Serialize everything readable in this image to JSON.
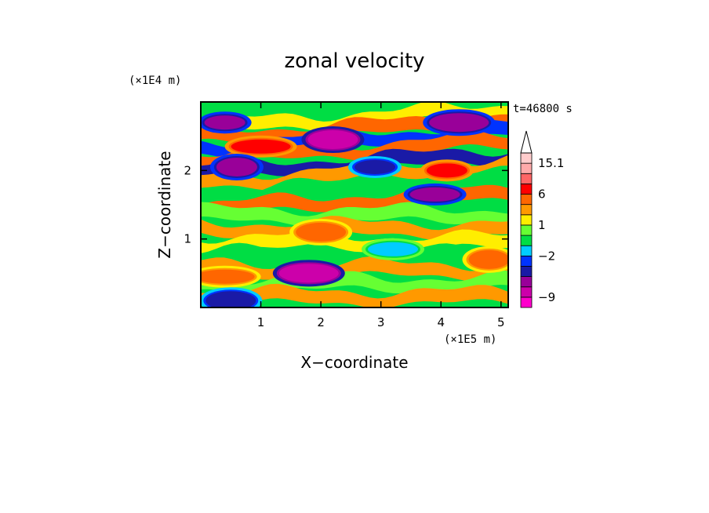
{
  "chart_data": {
    "type": "heatmap",
    "title": "zonal velocity",
    "xlabel": "X−coordinate",
    "ylabel": "Z−coordinate",
    "x_unit": "(×1E5 m)",
    "y_unit": "(×1E4 m)",
    "time_label": "t=46800 s",
    "xlim": [
      0,
      5.12
    ],
    "ylim": [
      0,
      3.0
    ],
    "x_ticks": [
      "1",
      "2",
      "3",
      "4",
      "5"
    ],
    "y_ticks": [
      "1",
      "2"
    ],
    "colorbar": {
      "labels": [
        "15.1",
        "6",
        "1",
        "−2",
        "−9"
      ],
      "colors": [
        "#ff00cc",
        "#cc00aa",
        "#990099",
        "#1a1aa6",
        "#0033ff",
        "#00ccff",
        "#00dd44",
        "#66ff33",
        "#ffee00",
        "#ff9900",
        "#ff6600",
        "#ff0000",
        "#ff6666",
        "#ffaaaa",
        "#ffcccc"
      ],
      "extend": "max"
    },
    "bands": [
      {
        "z": 2.75,
        "u": 1
      },
      {
        "z": 2.6,
        "u": 4
      },
      {
        "z": 2.45,
        "u": -3
      },
      {
        "z": 2.3,
        "u": 5
      },
      {
        "z": 2.1,
        "u": -5
      },
      {
        "z": 1.95,
        "u": 3
      },
      {
        "z": 1.75,
        "u": -1
      },
      {
        "z": 1.55,
        "u": 4
      },
      {
        "z": 1.35,
        "u": 0
      },
      {
        "z": 1.15,
        "u": 3
      },
      {
        "z": 0.95,
        "u": 1
      },
      {
        "z": 0.75,
        "u": -1
      },
      {
        "z": 0.55,
        "u": 2
      },
      {
        "z": 0.35,
        "u": 0
      },
      {
        "z": 0.15,
        "u": 2
      }
    ],
    "blobs": [
      {
        "x": 0.4,
        "z": 2.7,
        "u": -8
      },
      {
        "x": 2.2,
        "z": 2.45,
        "u": -9
      },
      {
        "x": 1.0,
        "z": 2.35,
        "u": 6
      },
      {
        "x": 0.6,
        "z": 2.05,
        "u": -8
      },
      {
        "x": 3.9,
        "z": 1.65,
        "u": -8
      },
      {
        "x": 1.8,
        "z": 0.5,
        "u": -9
      },
      {
        "x": 4.1,
        "z": 2.0,
        "u": 6
      },
      {
        "x": 2.0,
        "z": 1.1,
        "u": 5
      },
      {
        "x": 0.4,
        "z": 0.45,
        "u": 5
      },
      {
        "x": 4.8,
        "z": 0.7,
        "u": 4
      },
      {
        "x": 3.2,
        "z": 0.85,
        "u": -2
      },
      {
        "x": 4.3,
        "z": 2.7,
        "u": -7
      },
      {
        "x": 2.9,
        "z": 2.05,
        "u": -5
      },
      {
        "x": 0.5,
        "z": 0.1,
        "u": -5
      }
    ]
  }
}
